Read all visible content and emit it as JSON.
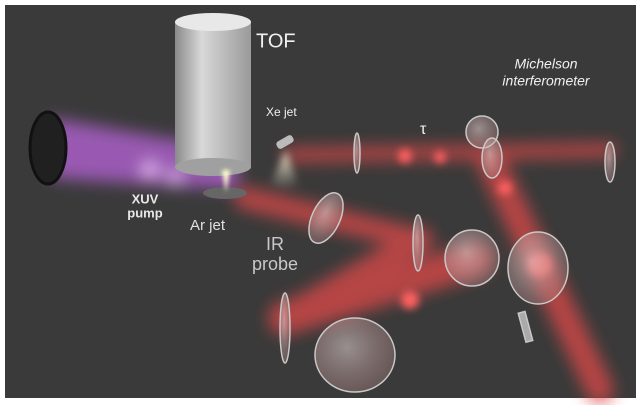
{
  "labels": {
    "tof": "TOF",
    "xe_jet": "Xe jet",
    "tau": "τ",
    "michelson": [
      "Michelson",
      "interferometer"
    ],
    "xuv_pump": [
      "XUV",
      "pump"
    ],
    "ar_jet": "Ar jet",
    "ir_probe": [
      "IR",
      "probe"
    ]
  }
}
